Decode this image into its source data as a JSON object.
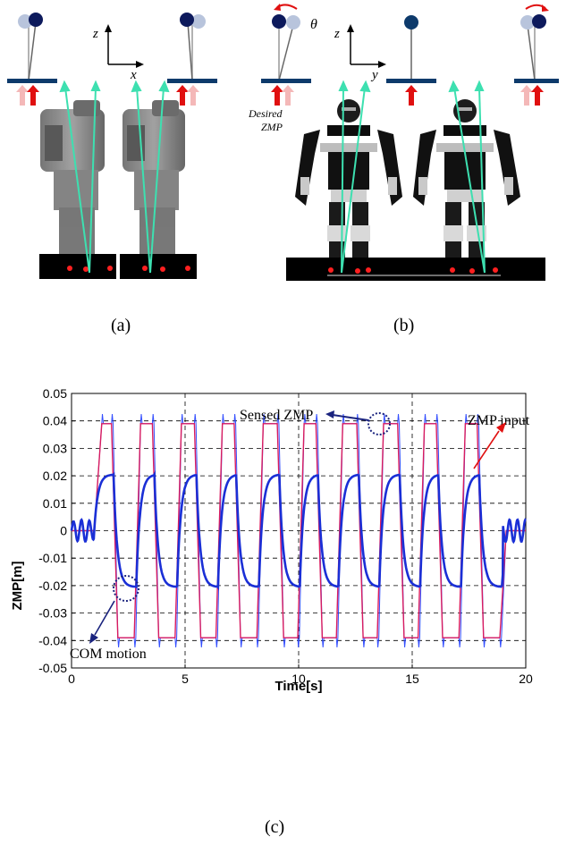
{
  "panel_a": {
    "caption": "(a)",
    "axis_vertical": "z",
    "axis_horizontal": "x"
  },
  "panel_b": {
    "caption": "(b)",
    "axis_vertical": "z",
    "axis_horizontal": "y",
    "angle_symbol": "θ",
    "desired_zmp_line1": "Desired",
    "desired_zmp_line2": "ZMP"
  },
  "panel_c": {
    "caption": "(c)"
  },
  "colors": {
    "zmp_input": "#d81b60",
    "sensed_zmp": "#1e3cff",
    "com_motion": "#1a2fd6",
    "pendulum": "#0d1a5c",
    "footplate": "#0d3a6b",
    "vector": "#3de0b0",
    "arrow_red": "#e01010",
    "arrow_pink": "#f4b8b8"
  },
  "chart_data": {
    "type": "line",
    "xlabel": "Time[s]",
    "ylabel": "ZMP[m]",
    "xlim": [
      0,
      20
    ],
    "ylim": [
      -0.05,
      0.05
    ],
    "xticks": [
      "0",
      "5",
      "10",
      "15",
      "20"
    ],
    "yticks": [
      "0.05",
      "0.04",
      "0.03",
      "0.02",
      "0.01",
      "0",
      "-0.01",
      "-0.02",
      "-0.03",
      "-0.04",
      "-0.05"
    ],
    "grid": true,
    "annotations": {
      "sensed": "Sensed ZMP",
      "input": "ZMP input",
      "com": "COM motion"
    },
    "zmp_levels": [
      0.039,
      -0.039
    ],
    "com_levels": [
      0.0205,
      -0.0205
    ],
    "zmp_switch_times": [
      1.05,
      1.9,
      2.9,
      3.7,
      4.7,
      5.55,
      6.5,
      7.3,
      8.3,
      9.2,
      10.1,
      10.9,
      11.8,
      12.7,
      13.6,
      14.5,
      15.4,
      16.2,
      17.2,
      18.0,
      19.0
    ],
    "zmp_start_level": 0,
    "zmp_end_level": 0,
    "oscillation_start": [
      0.0,
      1.0
    ],
    "oscillation_end": [
      19.0,
      20.0
    ]
  }
}
